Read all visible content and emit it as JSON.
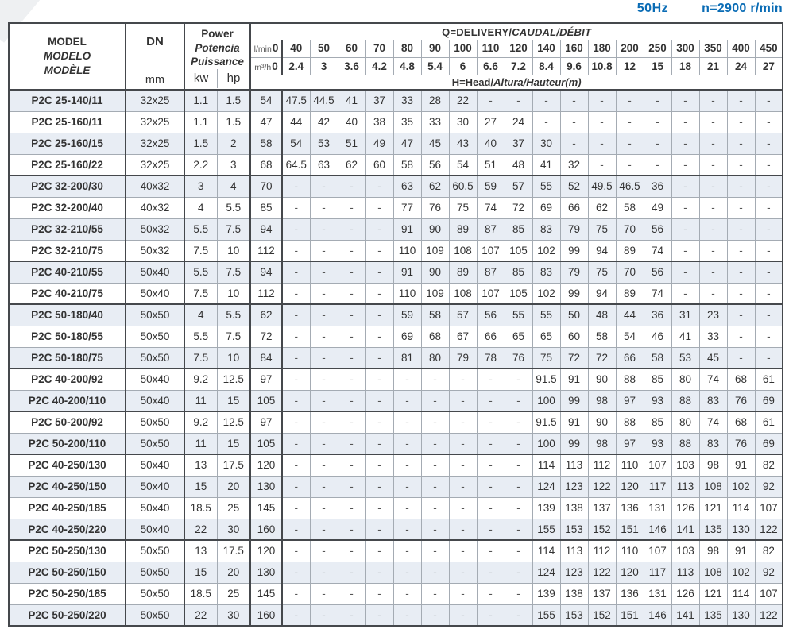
{
  "page_title": {
    "frequency": "50Hz",
    "speed": "n=2900 r/min"
  },
  "colors": {
    "accent_blue": "#0a6cb5",
    "row_shade": "#e8edf4",
    "thin_border": "#a4abb3",
    "thick_border": "#45484c"
  },
  "table": {
    "model_header": {
      "line1": "MODEL",
      "line2": "MODELO",
      "line3": "MODÈLE"
    },
    "dn_header": {
      "label": "DN",
      "unit": "mm"
    },
    "power_header": {
      "line1": "Power",
      "line2": "Potencia",
      "line3": "Puissance",
      "unit1": "kw",
      "unit2": "hp"
    },
    "delivery_header": {
      "title_plain": "Q=DELIVERY/",
      "title_italic": "CAUDAL/DÉBIT"
    },
    "head_header": {
      "title_plain": "H=Head/",
      "title_italic": "Altura/Hauteur(m)"
    },
    "flow_units": {
      "lmin": "l/min",
      "m3h": "m³/h"
    },
    "flow_lmin": [
      "0",
      "40",
      "50",
      "60",
      "70",
      "80",
      "90",
      "100",
      "110",
      "120",
      "140",
      "160",
      "180",
      "200",
      "250",
      "300",
      "350",
      "400",
      "450"
    ],
    "flow_m3h": [
      "0",
      "2.4",
      "3",
      "3.6",
      "4.2",
      "4.8",
      "5.4",
      "6",
      "6.6",
      "7.2",
      "8.4",
      "9.6",
      "10.8",
      "12",
      "15",
      "18",
      "21",
      "24",
      "27"
    ],
    "group_start_indices": [
      0,
      4,
      8,
      10,
      13,
      15,
      17,
      21
    ],
    "rows": [
      {
        "model": "P2C 25-140/11",
        "dn": "32x25",
        "kw": "1.1",
        "hp": "1.5",
        "heads": [
          "54",
          "47.5",
          "44.5",
          "41",
          "37",
          "33",
          "28",
          "22",
          "-",
          "-",
          "-",
          "-",
          "-",
          "-",
          "-",
          "-",
          "-",
          "-",
          "-"
        ]
      },
      {
        "model": "P2C 25-160/11",
        "dn": "32x25",
        "kw": "1.1",
        "hp": "1.5",
        "heads": [
          "47",
          "44",
          "42",
          "40",
          "38",
          "35",
          "33",
          "30",
          "27",
          "24",
          "-",
          "-",
          "-",
          "-",
          "-",
          "-",
          "-",
          "-",
          "-"
        ]
      },
      {
        "model": "P2C 25-160/15",
        "dn": "32x25",
        "kw": "1.5",
        "hp": "2",
        "heads": [
          "58",
          "54",
          "53",
          "51",
          "49",
          "47",
          "45",
          "43",
          "40",
          "37",
          "30",
          "-",
          "-",
          "-",
          "-",
          "-",
          "-",
          "-",
          "-"
        ]
      },
      {
        "model": "P2C 25-160/22",
        "dn": "32x25",
        "kw": "2.2",
        "hp": "3",
        "heads": [
          "68",
          "64.5",
          "63",
          "62",
          "60",
          "58",
          "56",
          "54",
          "51",
          "48",
          "41",
          "32",
          "-",
          "-",
          "-",
          "-",
          "-",
          "-",
          "-"
        ]
      },
      {
        "model": "P2C 32-200/30",
        "dn": "40x32",
        "kw": "3",
        "hp": "4",
        "heads": [
          "70",
          "-",
          "-",
          "-",
          "-",
          "63",
          "62",
          "60.5",
          "59",
          "57",
          "55",
          "52",
          "49.5",
          "46.5",
          "36",
          "-",
          "-",
          "-",
          "-"
        ]
      },
      {
        "model": "P2C 32-200/40",
        "dn": "40x32",
        "kw": "4",
        "hp": "5.5",
        "heads": [
          "85",
          "-",
          "-",
          "-",
          "-",
          "77",
          "76",
          "75",
          "74",
          "72",
          "69",
          "66",
          "62",
          "58",
          "49",
          "-",
          "-",
          "-",
          "-"
        ]
      },
      {
        "model": "P2C 32-210/55",
        "dn": "50x32",
        "kw": "5.5",
        "hp": "7.5",
        "heads": [
          "94",
          "-",
          "-",
          "-",
          "-",
          "91",
          "90",
          "89",
          "87",
          "85",
          "83",
          "79",
          "75",
          "70",
          "56",
          "-",
          "-",
          "-",
          "-"
        ]
      },
      {
        "model": "P2C 32-210/75",
        "dn": "50x32",
        "kw": "7.5",
        "hp": "10",
        "heads": [
          "112",
          "-",
          "-",
          "-",
          "-",
          "110",
          "109",
          "108",
          "107",
          "105",
          "102",
          "99",
          "94",
          "89",
          "74",
          "-",
          "-",
          "-",
          "-"
        ]
      },
      {
        "model": "P2C 40-210/55",
        "dn": "50x40",
        "kw": "5.5",
        "hp": "7.5",
        "heads": [
          "94",
          "-",
          "-",
          "-",
          "-",
          "91",
          "90",
          "89",
          "87",
          "85",
          "83",
          "79",
          "75",
          "70",
          "56",
          "-",
          "-",
          "-",
          "-"
        ]
      },
      {
        "model": "P2C 40-210/75",
        "dn": "50x40",
        "kw": "7.5",
        "hp": "10",
        "heads": [
          "112",
          "-",
          "-",
          "-",
          "-",
          "110",
          "109",
          "108",
          "107",
          "105",
          "102",
          "99",
          "94",
          "89",
          "74",
          "-",
          "-",
          "-",
          "-"
        ]
      },
      {
        "model": "P2C 50-180/40",
        "dn": "50x50",
        "kw": "4",
        "hp": "5.5",
        "heads": [
          "62",
          "-",
          "-",
          "-",
          "-",
          "59",
          "58",
          "57",
          "56",
          "55",
          "55",
          "50",
          "48",
          "44",
          "36",
          "31",
          "23",
          "-",
          "-"
        ]
      },
      {
        "model": "P2C 50-180/55",
        "dn": "50x50",
        "kw": "5.5",
        "hp": "7.5",
        "heads": [
          "72",
          "-",
          "-",
          "-",
          "-",
          "69",
          "68",
          "67",
          "66",
          "65",
          "65",
          "60",
          "58",
          "54",
          "46",
          "41",
          "33",
          "-",
          "-"
        ]
      },
      {
        "model": "P2C 50-180/75",
        "dn": "50x50",
        "kw": "7.5",
        "hp": "10",
        "heads": [
          "84",
          "-",
          "-",
          "-",
          "-",
          "81",
          "80",
          "79",
          "78",
          "76",
          "75",
          "72",
          "72",
          "66",
          "58",
          "53",
          "45",
          "-",
          "-"
        ]
      },
      {
        "model": "P2C 40-200/92",
        "dn": "50x40",
        "kw": "9.2",
        "hp": "12.5",
        "heads": [
          "97",
          "-",
          "-",
          "-",
          "-",
          "-",
          "-",
          "-",
          "-",
          "-",
          "91.5",
          "91",
          "90",
          "88",
          "85",
          "80",
          "74",
          "68",
          "61"
        ]
      },
      {
        "model": "P2C 40-200/110",
        "dn": "50x40",
        "kw": "11",
        "hp": "15",
        "heads": [
          "105",
          "-",
          "-",
          "-",
          "-",
          "-",
          "-",
          "-",
          "-",
          "-",
          "100",
          "99",
          "98",
          "97",
          "93",
          "88",
          "83",
          "76",
          "69"
        ]
      },
      {
        "model": "P2C 50-200/92",
        "dn": "50x50",
        "kw": "9.2",
        "hp": "12.5",
        "heads": [
          "97",
          "-",
          "-",
          "-",
          "-",
          "-",
          "-",
          "-",
          "-",
          "-",
          "91.5",
          "91",
          "90",
          "88",
          "85",
          "80",
          "74",
          "68",
          "61"
        ]
      },
      {
        "model": "P2C 50-200/110",
        "dn": "50x50",
        "kw": "11",
        "hp": "15",
        "heads": [
          "105",
          "-",
          "-",
          "-",
          "-",
          "-",
          "-",
          "-",
          "-",
          "-",
          "100",
          "99",
          "98",
          "97",
          "93",
          "88",
          "83",
          "76",
          "69"
        ]
      },
      {
        "model": "P2C 40-250/130",
        "dn": "50x40",
        "kw": "13",
        "hp": "17.5",
        "heads": [
          "120",
          "-",
          "-",
          "-",
          "-",
          "-",
          "-",
          "-",
          "-",
          "-",
          "114",
          "113",
          "112",
          "110",
          "107",
          "103",
          "98",
          "91",
          "82"
        ]
      },
      {
        "model": "P2C 40-250/150",
        "dn": "50x40",
        "kw": "15",
        "hp": "20",
        "heads": [
          "130",
          "-",
          "-",
          "-",
          "-",
          "-",
          "-",
          "-",
          "-",
          "-",
          "124",
          "123",
          "122",
          "120",
          "117",
          "113",
          "108",
          "102",
          "92"
        ]
      },
      {
        "model": "P2C 40-250/185",
        "dn": "50x40",
        "kw": "18.5",
        "hp": "25",
        "heads": [
          "145",
          "-",
          "-",
          "-",
          "-",
          "-",
          "-",
          "-",
          "-",
          "-",
          "139",
          "138",
          "137",
          "136",
          "131",
          "126",
          "121",
          "114",
          "107"
        ]
      },
      {
        "model": "P2C 40-250/220",
        "dn": "50x40",
        "kw": "22",
        "hp": "30",
        "heads": [
          "160",
          "-",
          "-",
          "-",
          "-",
          "-",
          "-",
          "-",
          "-",
          "-",
          "155",
          "153",
          "152",
          "151",
          "146",
          "141",
          "135",
          "130",
          "122"
        ]
      },
      {
        "model": "P2C 50-250/130",
        "dn": "50x50",
        "kw": "13",
        "hp": "17.5",
        "heads": [
          "120",
          "-",
          "-",
          "-",
          "-",
          "-",
          "-",
          "-",
          "-",
          "-",
          "114",
          "113",
          "112",
          "110",
          "107",
          "103",
          "98",
          "91",
          "82"
        ]
      },
      {
        "model": "P2C 50-250/150",
        "dn": "50x50",
        "kw": "15",
        "hp": "20",
        "heads": [
          "130",
          "-",
          "-",
          "-",
          "-",
          "-",
          "-",
          "-",
          "-",
          "-",
          "124",
          "123",
          "122",
          "120",
          "117",
          "113",
          "108",
          "102",
          "92"
        ]
      },
      {
        "model": "P2C 50-250/185",
        "dn": "50x50",
        "kw": "18.5",
        "hp": "25",
        "heads": [
          "145",
          "-",
          "-",
          "-",
          "-",
          "-",
          "-",
          "-",
          "-",
          "-",
          "139",
          "138",
          "137",
          "136",
          "131",
          "126",
          "121",
          "114",
          "107"
        ]
      },
      {
        "model": "P2C 50-250/220",
        "dn": "50x50",
        "kw": "22",
        "hp": "30",
        "heads": [
          "160",
          "-",
          "-",
          "-",
          "-",
          "-",
          "-",
          "-",
          "-",
          "-",
          "155",
          "153",
          "152",
          "151",
          "146",
          "141",
          "135",
          "130",
          "122"
        ]
      }
    ]
  }
}
